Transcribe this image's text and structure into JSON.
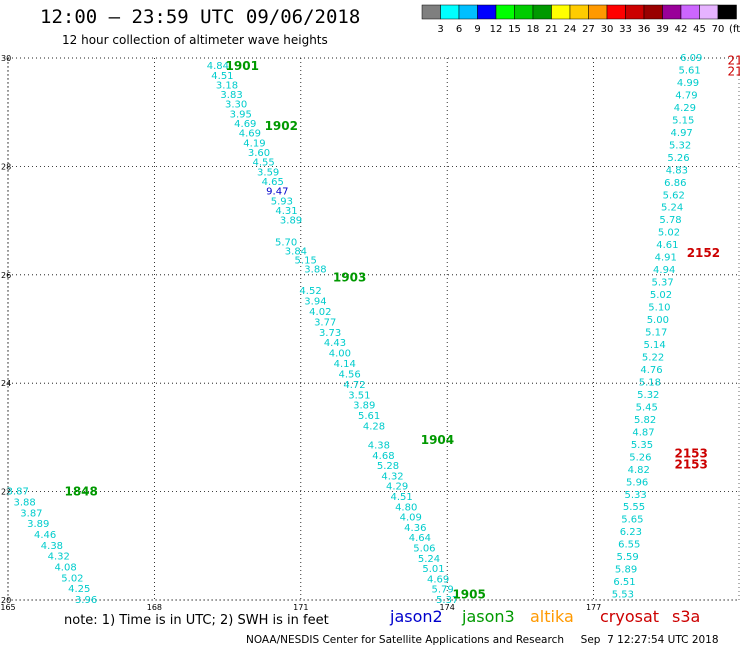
{
  "header": {
    "title": "12:00 — 23:59 UTC 09/06/2018",
    "subtitle": "12 hour collection of altimeter wave heights"
  },
  "colorbar": {
    "colors": [
      "#7f7f7f",
      "#00ffff",
      "#00bfff",
      "#0000ff",
      "#00ff00",
      "#00cc00",
      "#009900",
      "#ffff00",
      "#ffcc00",
      "#ff9900",
      "#ff0000",
      "#cc0000",
      "#990000",
      "#990099",
      "#cc66ff",
      "#e6b3ff",
      "#000000"
    ],
    "labels": [
      "3",
      "6",
      "9",
      "12",
      "15",
      "18",
      "21",
      "24",
      "27",
      "30",
      "33",
      "36",
      "39",
      "42",
      "45",
      "70",
      "(ft)"
    ]
  },
  "footer": {
    "note": "note:  1) Time is in UTC;  2) SWH is in feet",
    "credit": "NOAA/NESDIS Center for Satellite Applications and Research     Sep  7 12:27:54 UTC 2018",
    "satellites": [
      {
        "name": "jason2",
        "color": "#0000cc"
      },
      {
        "name": "jason3",
        "color": "#009900"
      },
      {
        "name": "altika",
        "color": "#ff9900"
      },
      {
        "name": "cryosat",
        "color": "#cc0000"
      },
      {
        "name": "s3a",
        "color": "#cc0000"
      }
    ]
  },
  "chart_data": {
    "type": "scatter",
    "xlim": [
      165,
      180
    ],
    "ylim": [
      20,
      30
    ],
    "x_ticks": [
      "165",
      "168",
      "171",
      "174",
      "177"
    ],
    "y_ticks": [
      "20",
      "22",
      "24",
      "26",
      "28",
      "30"
    ],
    "grid": true,
    "tracks": [
      {
        "satellite": "jason3",
        "time": "1848",
        "start": [
          165.2,
          22.0
        ],
        "end": [
          166.6,
          20.0
        ],
        "label_at": [
          166.5,
          22.0
        ],
        "values": [
          "3.87",
          "3.88",
          "3.87",
          "3.89",
          "4.46",
          "4.38",
          "4.32",
          "4.08",
          "5.02",
          "4.25",
          "3.96"
        ]
      },
      {
        "satellite": "jason3",
        "time": "1901",
        "start": [
          169.3,
          29.85
        ],
        "end": [
          170.8,
          27.0
        ],
        "label_at": [
          169.8,
          29.85
        ],
        "values": [
          "4.84",
          "4.51",
          "3.18",
          "3.83",
          "3.30",
          "3.95",
          "4.69",
          "4.69",
          "4.19",
          "3.60",
          "4.55",
          "3.59",
          "4.65",
          "9.47",
          "5.93",
          "4.31",
          "3.89"
        ]
      },
      {
        "satellite": "jason3",
        "time": "1902",
        "start": [
          170.7,
          26.6
        ],
        "end": [
          171.3,
          26.1
        ],
        "label_at": [
          170.6,
          28.75
        ],
        "values": [
          "5.70",
          "3.84",
          "5.15",
          "3.88"
        ]
      },
      {
        "satellite": "jason3",
        "time": "1903",
        "start": [
          171.2,
          25.7
        ],
        "end": [
          172.5,
          23.2
        ],
        "label_at": [
          172.0,
          25.95
        ],
        "values": [
          "4.52",
          "3.94",
          "4.02",
          "3.77",
          "3.73",
          "4.43",
          "4.00",
          "4.14",
          "4.56",
          "4.72",
          "3.51",
          "3.89",
          "5.61",
          "4.28"
        ]
      },
      {
        "satellite": "jason3",
        "time": "1904",
        "start": [
          172.6,
          22.85
        ],
        "end": [
          174.0,
          20.0
        ],
        "label_at": [
          173.8,
          22.95
        ],
        "values": [
          "4.38",
          "4.68",
          "5.28",
          "4.32",
          "4.29",
          "4.51",
          "4.80",
          "4.09",
          "4.36",
          "4.64",
          "5.06",
          "5.24",
          "5.01",
          "4.69",
          "5.79",
          "5.37"
        ]
      },
      {
        "satellite": "jason3",
        "time": "1905",
        "start": [
          174.0,
          20.0
        ],
        "end": [
          174.0,
          20.0
        ],
        "label_at": [
          174.45,
          20.1
        ],
        "values": []
      },
      {
        "satellite": "cryosat",
        "time": "2152",
        "start": [
          179.4,
          26.4
        ],
        "end": [
          179.4,
          26.4
        ],
        "label_at": [
          179.25,
          26.4
        ],
        "values": []
      },
      {
        "satellite": "cryosat",
        "time": "2153",
        "start": [
          179.4,
          22.65
        ],
        "end": [
          179.4,
          22.45
        ],
        "label_at": [
          179.0,
          22.7
        ],
        "values": []
      },
      {
        "satellite": "cryosat",
        "time": "2153",
        "start": [
          179.4,
          22.45
        ],
        "end": [
          179.4,
          22.45
        ],
        "label_at": [
          179.0,
          22.5
        ],
        "values": []
      },
      {
        "satellite": "s3a",
        "time": "",
        "start": [
          179.0,
          30.0
        ],
        "end": [
          177.6,
          20.1
        ],
        "label_at": [
          179.0,
          30.0
        ],
        "values": [
          "6.09",
          "5.61",
          "4.99",
          "4.79",
          "4.29",
          "5.15",
          "4.97",
          "5.32",
          "5.26",
          "4.83",
          "6.86",
          "5.62",
          "5.24",
          "5.78",
          "5.02",
          "4.61",
          "4.91",
          "4.94",
          "5.37",
          "5.02",
          "5.10",
          "5.00",
          "5.17",
          "5.14",
          "5.22",
          "4.76",
          "5.18",
          "5.32",
          "5.45",
          "5.82",
          "4.87",
          "5.35",
          "5.26",
          "4.82",
          "5.96",
          "5.33",
          "5.55",
          "5.65",
          "6.23",
          "6.55",
          "5.59",
          "5.89",
          "6.51",
          "5.53"
        ]
      }
    ],
    "cutoff_labels": [
      {
        "text": "21",
        "x": 179.9,
        "y": 29.95,
        "color": "#cc0000"
      },
      {
        "text": "21",
        "x": 179.9,
        "y": 29.75,
        "color": "#cc0000"
      }
    ]
  }
}
